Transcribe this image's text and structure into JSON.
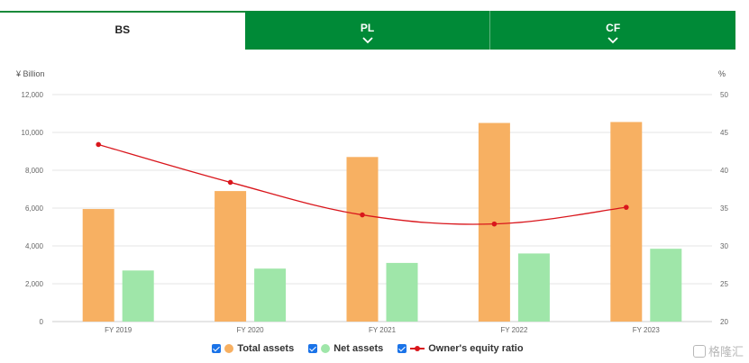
{
  "tabs": [
    {
      "label": "BS",
      "active": true,
      "icon": ""
    },
    {
      "label": "PL",
      "active": false,
      "icon": "chevron-down-icon"
    },
    {
      "label": "CF",
      "active": false,
      "icon": "chevron-down-icon"
    }
  ],
  "colors": {
    "tab_green": "#008a37",
    "total_assets": "#f7b062",
    "net_assets": "#9fe6a9",
    "equity_ratio": "#d9161c",
    "checkbox": "#1a73e8"
  },
  "chart_data": {
    "type": "bar",
    "categories": [
      "FY 2019",
      "FY 2020",
      "FY 2021",
      "FY 2022",
      "FY 2023"
    ],
    "y_left_unit": "¥ Billion",
    "y_right_unit": "%",
    "y_left_ticks": [
      "0",
      "2,000",
      "4,000",
      "6,000",
      "8,000",
      "10,000",
      "12,000"
    ],
    "y_right_ticks": [
      "20",
      "25",
      "30",
      "35",
      "40",
      "45",
      "50"
    ],
    "ylim_left": [
      0,
      12000
    ],
    "ylim_right": [
      20,
      50
    ],
    "grid": true,
    "legend_position": "bottom",
    "series": [
      {
        "name": "Total assets",
        "kind": "bar",
        "axis": "left",
        "values": [
          5950,
          6900,
          8700,
          10500,
          10550
        ]
      },
      {
        "name": "Net assets",
        "kind": "bar",
        "axis": "left",
        "values": [
          2700,
          2800,
          3100,
          3600,
          3850
        ]
      },
      {
        "name": "Owner's equity ratio",
        "kind": "line",
        "axis": "right",
        "values": [
          43.4,
          38.4,
          34.1,
          32.9,
          35.1
        ]
      }
    ]
  },
  "watermark": "格隆汇"
}
